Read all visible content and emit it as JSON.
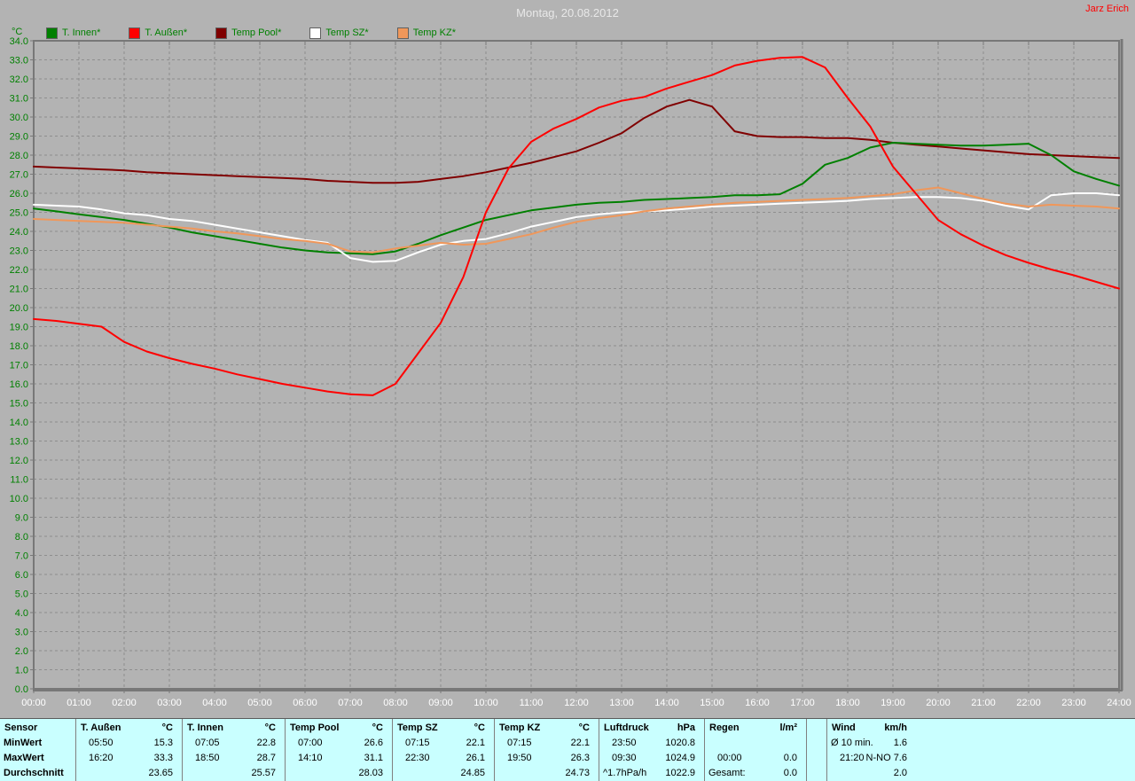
{
  "titlebar": {
    "title": "Montag, 20.08.2012",
    "author": "Jarz Erich"
  },
  "legend": {
    "unit": "°C",
    "items": [
      {
        "label": "T. Innen*",
        "color": "#008000"
      },
      {
        "label": "T. Außen*",
        "color": "#ff0000"
      },
      {
        "label": "Temp Pool*",
        "color": "#800000"
      },
      {
        "label": "Temp SZ*",
        "color": "#ffffff"
      },
      {
        "label": "Temp KZ*",
        "color": "#f0975a"
      }
    ]
  },
  "colors": {
    "background": "#b3b3b3",
    "grid": "#8e8e8e",
    "axis": "#787878",
    "y_label": "#008000",
    "x_label": "#ffffff",
    "title": "#e8e8e8",
    "author": "#ff0000",
    "legend_text": "#008000",
    "table_bg": "#c9ffff",
    "table_border": "#808080"
  },
  "chart_data": {
    "type": "line",
    "title": "Montag, 20.08.2012",
    "xlabel": "",
    "ylabel": "°C",
    "ylim": [
      0,
      34
    ],
    "y_tick_step": 1,
    "grid": "dashed",
    "legend_position": "top-left",
    "y_tick_labels": [
      "0.0",
      "1.0",
      "2.0",
      "3.0",
      "4.0",
      "5.0",
      "6.0",
      "7.0",
      "8.0",
      "9.0",
      "10.0",
      "11.0",
      "12.0",
      "13.0",
      "14.0",
      "15.0",
      "16.0",
      "17.0",
      "18.0",
      "19.0",
      "20.0",
      "21.0",
      "22.0",
      "23.0",
      "24.0",
      "25.0",
      "26.0",
      "27.0",
      "28.0",
      "29.0",
      "30.0",
      "31.0",
      "32.0",
      "33.0",
      "34.0"
    ],
    "x_tick_labels": [
      "00:00",
      "01:00",
      "02:00",
      "03:00",
      "04:00",
      "05:00",
      "06:00",
      "07:00",
      "08:00",
      "09:00",
      "10:00",
      "11:00",
      "12:00",
      "13:00",
      "14:00",
      "15:00",
      "16:00",
      "17:00",
      "18:00",
      "19:00",
      "20:00",
      "21:00",
      "22:00",
      "23:00",
      "24:00"
    ],
    "x_hours": [
      0,
      0.5,
      1,
      1.5,
      2,
      2.5,
      3,
      3.5,
      4,
      4.5,
      5,
      5.5,
      6,
      6.5,
      7,
      7.5,
      8,
      8.5,
      9,
      9.5,
      10,
      10.5,
      11,
      11.5,
      12,
      12.5,
      13,
      13.5,
      14,
      14.5,
      15,
      15.5,
      16,
      16.5,
      17,
      17.5,
      18,
      18.5,
      19,
      19.5,
      20,
      20.5,
      21,
      21.5,
      22,
      22.5,
      23,
      23.5,
      24
    ],
    "series": [
      {
        "name": "T. Innen",
        "color": "#008000",
        "values": [
          25.2,
          25.05,
          24.9,
          24.75,
          24.6,
          24.4,
          24.2,
          23.95,
          23.75,
          23.55,
          23.35,
          23.15,
          23.0,
          22.9,
          22.85,
          22.8,
          22.95,
          23.35,
          23.8,
          24.2,
          24.6,
          24.85,
          25.1,
          25.25,
          25.4,
          25.5,
          25.55,
          25.65,
          25.7,
          25.75,
          25.8,
          25.9,
          25.9,
          25.95,
          26.5,
          27.5,
          27.85,
          28.4,
          28.65,
          28.6,
          28.55,
          28.5,
          28.5,
          28.55,
          28.6,
          28.0,
          27.15,
          26.75,
          26.4
        ]
      },
      {
        "name": "T. Außen",
        "color": "#ff0000",
        "values": [
          19.4,
          19.3,
          19.15,
          19.0,
          18.2,
          17.7,
          17.35,
          17.05,
          16.8,
          16.5,
          16.25,
          16.0,
          15.8,
          15.6,
          15.45,
          15.4,
          16.0,
          17.6,
          19.2,
          21.6,
          25.0,
          27.3,
          28.7,
          29.4,
          29.9,
          30.5,
          30.85,
          31.05,
          31.5,
          31.85,
          32.2,
          32.7,
          32.95,
          33.1,
          33.15,
          32.6,
          31.0,
          29.5,
          27.4,
          26.0,
          24.6,
          23.85,
          23.25,
          22.75,
          22.35,
          22.0,
          21.7,
          21.35,
          21.0
        ]
      },
      {
        "name": "Temp Pool",
        "color": "#800000",
        "values": [
          27.4,
          27.35,
          27.3,
          27.25,
          27.2,
          27.1,
          27.05,
          27.0,
          26.95,
          26.9,
          26.85,
          26.8,
          26.75,
          26.65,
          26.6,
          26.55,
          26.55,
          26.6,
          26.75,
          26.9,
          27.1,
          27.35,
          27.6,
          27.9,
          28.2,
          28.65,
          29.15,
          29.95,
          30.55,
          30.9,
          30.55,
          29.25,
          29.0,
          28.95,
          28.95,
          28.9,
          28.9,
          28.8,
          28.65,
          28.55,
          28.45,
          28.35,
          28.25,
          28.15,
          28.05,
          28.0,
          27.95,
          27.9,
          27.85
        ]
      },
      {
        "name": "Temp SZ",
        "color": "#ffffff",
        "values": [
          25.4,
          25.35,
          25.3,
          25.15,
          24.95,
          24.85,
          24.65,
          24.55,
          24.35,
          24.15,
          23.95,
          23.75,
          23.55,
          23.4,
          22.6,
          22.4,
          22.45,
          22.9,
          23.3,
          23.5,
          23.6,
          23.9,
          24.25,
          24.5,
          24.75,
          24.9,
          25.0,
          25.05,
          25.1,
          25.2,
          25.3,
          25.35,
          25.4,
          25.45,
          25.5,
          25.55,
          25.6,
          25.7,
          25.75,
          25.8,
          25.8,
          25.75,
          25.6,
          25.35,
          25.15,
          25.9,
          26.0,
          26.0,
          25.9
        ]
      },
      {
        "name": "Temp KZ",
        "color": "#f0975a",
        "values": [
          24.65,
          24.6,
          24.55,
          24.5,
          24.45,
          24.35,
          24.25,
          24.15,
          24.0,
          23.9,
          23.75,
          23.6,
          23.5,
          23.35,
          22.95,
          22.9,
          23.1,
          23.25,
          23.4,
          23.3,
          23.35,
          23.6,
          23.85,
          24.2,
          24.5,
          24.7,
          24.85,
          25.05,
          25.2,
          25.3,
          25.4,
          25.5,
          25.55,
          25.6,
          25.65,
          25.7,
          25.75,
          25.85,
          25.95,
          26.15,
          26.3,
          26.0,
          25.7,
          25.45,
          25.3,
          25.4,
          25.35,
          25.3,
          25.2
        ]
      }
    ]
  },
  "table": {
    "panels": [
      {
        "name": "Sensor",
        "unit": "",
        "rows": [
          [
            "MinWert",
            ""
          ],
          [
            "MaxWert",
            ""
          ],
          [
            "Durchschnitt",
            ""
          ]
        ]
      },
      {
        "name": "T. Außen",
        "unit": "°C",
        "rows": [
          [
            "05:50",
            "15.3"
          ],
          [
            "16:20",
            "33.3"
          ],
          [
            "",
            "23.65"
          ]
        ]
      },
      {
        "name": "T. Innen",
        "unit": "°C",
        "rows": [
          [
            "07:05",
            "22.8"
          ],
          [
            "18:50",
            "28.7"
          ],
          [
            "",
            "25.57"
          ]
        ]
      },
      {
        "name": "Temp Pool",
        "unit": "°C",
        "rows": [
          [
            "07:00",
            "26.6"
          ],
          [
            "14:10",
            "31.1"
          ],
          [
            "",
            "28.03"
          ]
        ]
      },
      {
        "name": "Temp SZ",
        "unit": "°C",
        "rows": [
          [
            "07:15",
            "22.1"
          ],
          [
            "22:30",
            "26.1"
          ],
          [
            "",
            "24.85"
          ]
        ]
      },
      {
        "name": "Temp KZ",
        "unit": "°C",
        "rows": [
          [
            "07:15",
            "22.1"
          ],
          [
            "19:50",
            "26.3"
          ],
          [
            "",
            "24.73"
          ]
        ]
      },
      {
        "name": "Luftdruck",
        "unit": "hPa",
        "rows": [
          [
            "23:50",
            "1020.8"
          ],
          [
            "09:30",
            "1024.9"
          ],
          [
            "^1.7hPa/h",
            "1022.9"
          ]
        ]
      },
      {
        "name": "Regen",
        "unit": "l/m²",
        "rows": [
          [
            "",
            ""
          ],
          [
            "00:00",
            "0.0"
          ],
          [
            "Gesamt:",
            "0.0"
          ]
        ]
      },
      {
        "name": "Wind",
        "unit": "km/h",
        "rows": [
          [
            "Ø 10 min.",
            "1.6"
          ],
          [
            "21:20",
            "N-NO 7.6"
          ],
          [
            "",
            "2.0"
          ]
        ]
      }
    ]
  }
}
